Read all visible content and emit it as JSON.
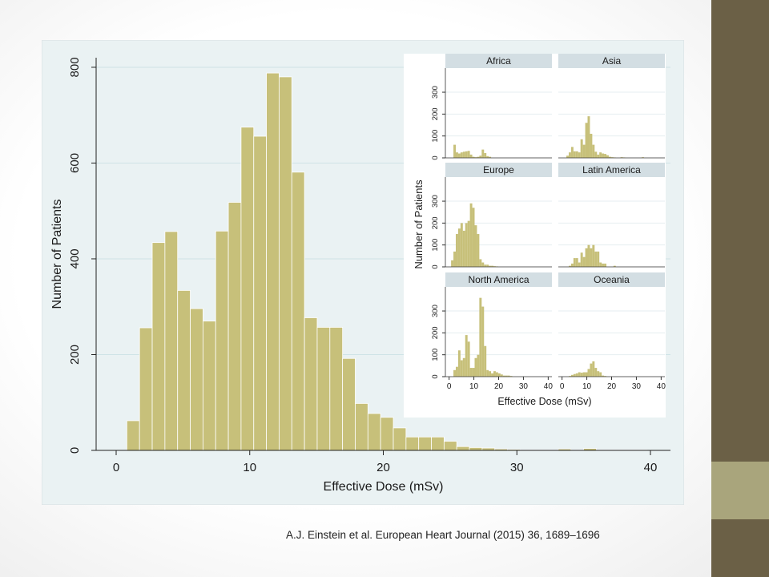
{
  "colors": {
    "bar_fill": "#c7c07a",
    "bar_stroke": "#ffffff",
    "plot_bg": "#eaf2f3",
    "grid": "#cfe3e6",
    "strip_bg": "#d3dee3",
    "sidebar_dark": "#6b6046",
    "sidebar_light": "#a9a57c"
  },
  "citation": "A.J. Einstein et al. European Heart Journal (2015) 36, 1689–1696",
  "chart_data": [
    {
      "type": "bar",
      "title": "",
      "xlabel": "Effective Dose (mSv)",
      "ylabel": "Number of Patients",
      "xlim": [
        -1.5,
        41.5
      ],
      "ylim": [
        0,
        820
      ],
      "xticks": [
        0,
        10,
        20,
        30,
        40
      ],
      "yticks": [
        0,
        200,
        400,
        600,
        800
      ],
      "grid": true,
      "bin_width": 0.95,
      "x": [
        0.8,
        1.75,
        2.7,
        3.65,
        4.6,
        5.55,
        6.5,
        7.45,
        8.4,
        9.35,
        10.3,
        11.25,
        12.2,
        13.15,
        14.1,
        15.05,
        16.0,
        16.95,
        17.9,
        18.85,
        19.8,
        20.75,
        21.7,
        22.65,
        23.6,
        24.55,
        25.5,
        26.45,
        27.4,
        28.35,
        29.3,
        30.25,
        31.2,
        32.15,
        33.1,
        34.05,
        35.0,
        35.95,
        36.9,
        37.85,
        38.8
      ],
      "values": [
        62,
        256,
        434,
        457,
        334,
        296,
        270,
        458,
        518,
        675,
        656,
        788,
        780,
        581,
        277,
        257,
        257,
        192,
        98,
        77,
        69,
        47,
        28,
        28,
        28,
        19,
        8,
        6,
        5,
        3,
        2,
        1,
        1,
        1,
        3,
        1,
        4,
        1,
        1,
        1,
        1
      ]
    },
    {
      "type": "bar",
      "title": "",
      "layout": "small-multiples",
      "xlabel": "Effective Dose (mSv)",
      "ylabel": "Number of Patients",
      "xlim": [
        -1.5,
        41.5
      ],
      "ylim": [
        0,
        410
      ],
      "xticks": [
        0,
        10,
        20,
        30,
        40
      ],
      "yticks": [
        0,
        100,
        200,
        300
      ],
      "bin_width": 0.95,
      "x": [
        0.8,
        1.75,
        2.7,
        3.65,
        4.6,
        5.55,
        6.5,
        7.45,
        8.4,
        9.35,
        10.3,
        11.25,
        12.2,
        13.15,
        14.1,
        15.05,
        16.0,
        16.95,
        17.9,
        18.85,
        19.8,
        20.75,
        21.7,
        22.65,
        23.6,
        24.55,
        25.5,
        26.45,
        27.4,
        28.35,
        29.3,
        30.25,
        31.2,
        32.15,
        33.1,
        34.05,
        35.0,
        35.95,
        36.9,
        37.85,
        38.8
      ],
      "panels": [
        {
          "name": "Africa",
          "values": [
            0,
            60,
            25,
            20,
            25,
            28,
            30,
            32,
            15,
            5,
            3,
            5,
            10,
            38,
            22,
            8,
            5,
            0,
            0,
            0,
            0,
            0,
            0,
            0,
            0,
            0,
            0,
            0,
            0,
            0,
            0,
            0,
            0,
            0,
            0,
            0,
            0,
            0,
            0,
            0,
            0
          ]
        },
        {
          "name": "Asia",
          "values": [
            0,
            10,
            25,
            50,
            30,
            30,
            25,
            85,
            60,
            160,
            190,
            110,
            60,
            28,
            15,
            25,
            20,
            18,
            12,
            5,
            3,
            2,
            0,
            0,
            3,
            2,
            0,
            0,
            0,
            0,
            0,
            0,
            0,
            3,
            0,
            0,
            0,
            0,
            0,
            0,
            0
          ]
        },
        {
          "name": "Europe",
          "values": [
            30,
            70,
            150,
            175,
            200,
            165,
            200,
            210,
            290,
            270,
            190,
            150,
            35,
            20,
            10,
            10,
            5,
            5,
            3,
            2,
            0,
            0,
            0,
            0,
            0,
            0,
            0,
            0,
            0,
            0,
            0,
            0,
            0,
            0,
            0,
            0,
            0,
            0,
            0,
            0,
            0
          ]
        },
        {
          "name": "Latin America",
          "values": [
            0,
            0,
            5,
            15,
            40,
            40,
            20,
            65,
            45,
            85,
            100,
            85,
            100,
            70,
            70,
            20,
            15,
            15,
            0,
            0,
            0,
            5,
            0,
            0,
            0,
            0,
            0,
            0,
            0,
            0,
            0,
            0,
            0,
            0,
            0,
            0,
            0,
            0,
            0,
            0,
            0
          ]
        },
        {
          "name": "North America",
          "values": [
            0,
            30,
            45,
            120,
            75,
            85,
            190,
            160,
            40,
            40,
            85,
            100,
            360,
            320,
            140,
            30,
            25,
            15,
            25,
            20,
            15,
            10,
            5,
            5,
            5,
            3,
            0,
            0,
            0,
            0,
            0,
            0,
            0,
            0,
            0,
            0,
            0,
            0,
            0,
            0,
            0
          ]
        },
        {
          "name": "Oceania",
          "values": [
            0,
            0,
            3,
            8,
            12,
            15,
            20,
            18,
            20,
            20,
            35,
            60,
            70,
            40,
            25,
            20,
            5,
            3,
            0,
            0,
            0,
            0,
            0,
            0,
            0,
            0,
            0,
            0,
            0,
            0,
            0,
            0,
            0,
            0,
            0,
            0,
            0,
            0,
            0,
            0,
            0
          ]
        }
      ]
    }
  ]
}
